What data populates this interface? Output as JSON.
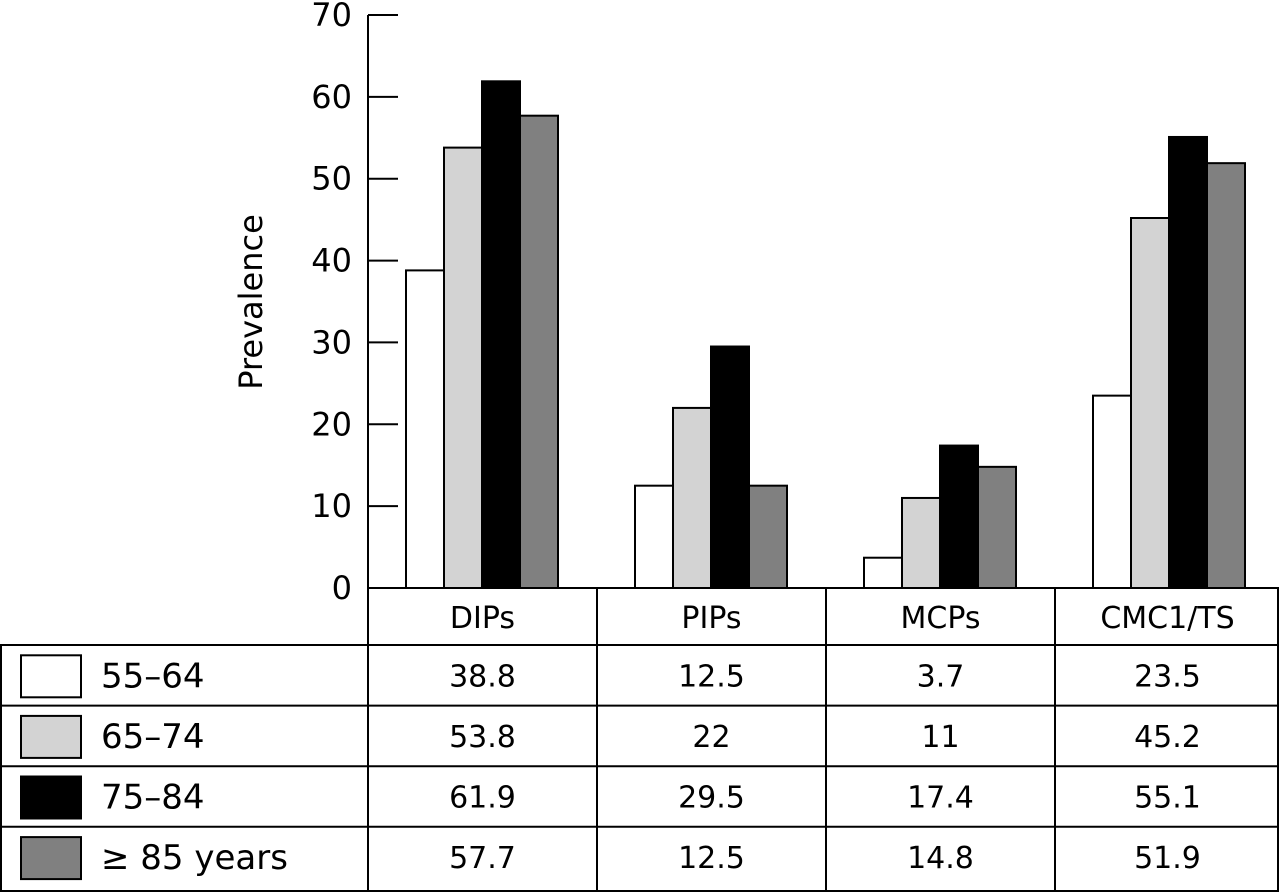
{
  "chart_data": {
    "type": "bar",
    "title": "",
    "xlabel": "",
    "ylabel": "Prevalence",
    "ylim": [
      0,
      70
    ],
    "yticks": [
      0,
      10,
      20,
      30,
      40,
      50,
      60,
      70
    ],
    "grid": false,
    "categories": [
      "DIPs",
      "PIPs",
      "MCPs",
      "CMC1/TS"
    ],
    "series": [
      {
        "name": "55–64",
        "color": "#ffffff",
        "values": [
          38.8,
          12.5,
          3.7,
          23.5
        ]
      },
      {
        "name": "65–74",
        "color": "#d3d3d3",
        "values": [
          53.8,
          22,
          11,
          45.2
        ]
      },
      {
        "name": "75–84",
        "color": "#000000",
        "values": [
          61.9,
          29.5,
          17.4,
          55.1
        ]
      },
      {
        "name": "≥ 85 years",
        "color": "#808080",
        "values": [
          57.7,
          12.5,
          14.8,
          51.9
        ]
      }
    ],
    "legend_placement": "data-table-left",
    "table_values": [
      [
        "38.8",
        "12.5",
        "3.7",
        "23.5"
      ],
      [
        "53.8",
        "22",
        "11",
        "45.2"
      ],
      [
        "61.9",
        "29.5",
        "17.4",
        "55.1"
      ],
      [
        "57.7",
        "12.5",
        "14.8",
        "51.9"
      ]
    ]
  }
}
